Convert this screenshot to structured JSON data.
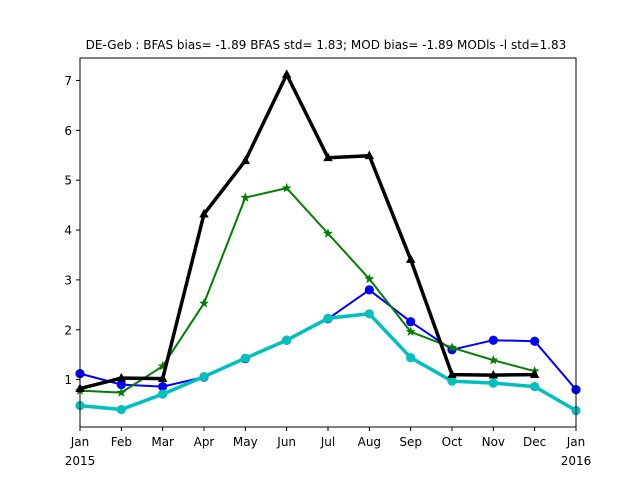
{
  "chart_data": {
    "type": "line",
    "title": "DE-Geb   : BFAS bias= -1.89 BFAS std= 1.83; MOD bias= -1.89 MODls -l std=1.83",
    "x_ticks": [
      {
        "x": "2015-01",
        "label": "Jan",
        "sublabel": "2015"
      },
      {
        "x": "2015-02",
        "label": "Feb"
      },
      {
        "x": "2015-03",
        "label": "Mar"
      },
      {
        "x": "2015-04",
        "label": "Apr"
      },
      {
        "x": "2015-05",
        "label": "May"
      },
      {
        "x": "2015-06",
        "label": "Jun"
      },
      {
        "x": "2015-07",
        "label": "Jul"
      },
      {
        "x": "2015-08",
        "label": "Aug"
      },
      {
        "x": "2015-09",
        "label": "Sep"
      },
      {
        "x": "2015-10",
        "label": "Oct"
      },
      {
        "x": "2015-11",
        "label": "Nov"
      },
      {
        "x": "2015-12",
        "label": "Dec"
      },
      {
        "x": "2016-01",
        "label": "Jan",
        "sublabel": "2016"
      }
    ],
    "xlim": [
      "2015-01",
      "2016-01"
    ],
    "ylim": [
      0.05,
      7.45
    ],
    "y_ticks": [
      1,
      2,
      3,
      4,
      5,
      6,
      7
    ],
    "grid": false,
    "series": [
      {
        "color": "#0000ff",
        "marker": "circle",
        "line_width": "medium",
        "x": [
          "2015-01",
          "2015-02",
          "2015-03",
          "2015-04",
          "2015-05",
          "2015-06",
          "2015-07",
          "2015-08",
          "2015-09",
          "2015-10",
          "2015-11",
          "2015-12",
          "2016-01"
        ],
        "values": [
          1.12,
          0.9,
          0.86,
          1.05,
          1.42,
          1.79,
          2.22,
          2.8,
          2.16,
          1.6,
          1.79,
          1.77,
          0.8
        ]
      },
      {
        "color": "#00bfbf",
        "marker": "circle",
        "line_width": "thick",
        "x": [
          "2015-01",
          "2015-02",
          "2015-03",
          "2015-04",
          "2015-05",
          "2015-06",
          "2015-07",
          "2015-08",
          "2015-09",
          "2015-10",
          "2015-11",
          "2015-12",
          "2016-01"
        ],
        "values": [
          0.48,
          0.4,
          0.71,
          1.06,
          1.43,
          1.79,
          2.23,
          2.32,
          1.44,
          0.97,
          0.93,
          0.86,
          0.38
        ]
      },
      {
        "color": "#008000",
        "marker": "star",
        "line_width": "medium",
        "x": [
          "2015-01",
          "2015-02",
          "2015-03",
          "2015-04",
          "2015-05",
          "2015-06",
          "2015-07",
          "2015-08",
          "2015-09",
          "2015-10",
          "2015-11",
          "2015-12"
        ],
        "values": [
          0.78,
          0.74,
          1.27,
          2.53,
          4.65,
          4.84,
          3.93,
          3.02,
          1.96,
          1.64,
          1.39,
          1.17
        ]
      },
      {
        "color": "#000000",
        "marker": "triangle",
        "line_width": "thick",
        "x": [
          "2015-01",
          "2015-02",
          "2015-03",
          "2015-04",
          "2015-05",
          "2015-06",
          "2015-07",
          "2015-08",
          "2015-09",
          "2015-10",
          "2015-11",
          "2015-12"
        ],
        "values": [
          0.82,
          1.03,
          1.02,
          4.32,
          5.39,
          7.12,
          5.45,
          5.49,
          3.41,
          1.1,
          1.09,
          1.1
        ]
      }
    ]
  }
}
